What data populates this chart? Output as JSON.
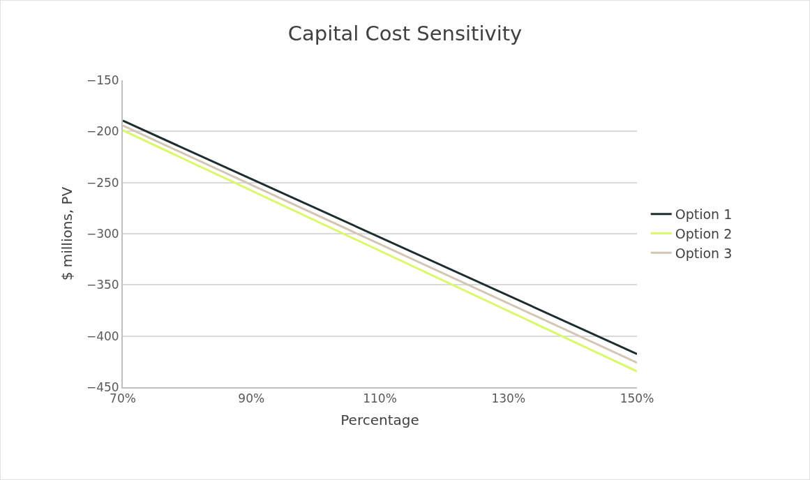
{
  "chart_data": {
    "type": "line",
    "title": "Capital Cost Sensitivity",
    "xlabel": "Percentage",
    "ylabel": "$ millions, PV",
    "x": [
      70,
      150
    ],
    "series": [
      {
        "name": "Option 1",
        "color": "#1e2d2f",
        "values": [
          -189.5,
          -417.5
        ]
      },
      {
        "name": "Option 2",
        "color": "#dbf86a",
        "values": [
          -198.9,
          -434.5
        ]
      },
      {
        "name": "Option 3",
        "color": "#d4c5b4",
        "values": [
          -194.3,
          -426
        ]
      }
    ],
    "xlim": [
      70,
      150
    ],
    "xticks": [
      {
        "value": 70,
        "label": "70%"
      },
      {
        "value": 90,
        "label": "90%"
      },
      {
        "value": 110,
        "label": "110%"
      },
      {
        "value": 130,
        "label": "130%"
      },
      {
        "value": 150,
        "label": "150%"
      }
    ],
    "ylim": [
      -450,
      -150
    ],
    "yticks": [
      -450,
      -400,
      -350,
      -300,
      -250,
      -200,
      -150
    ],
    "grid": "y",
    "legend": "right",
    "marker": "none",
    "line_style": "solid"
  }
}
